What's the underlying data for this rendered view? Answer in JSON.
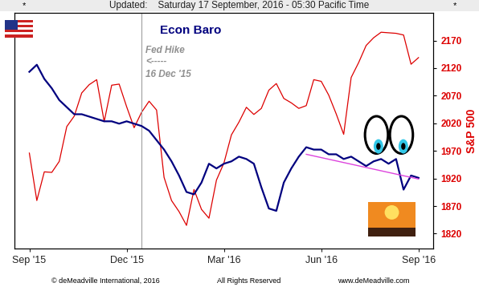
{
  "chart_data": {
    "type": "line",
    "header": "Updated:    Saturday 17 September, 2016 - 05:30 Pacific Time",
    "header_mark": "*",
    "title": "Econ Baro",
    "y2_label": "S&P 500",
    "footer": [
      "© deMeadville International, 2016",
      "All Rights Reserved",
      "www.deMeadville.com"
    ],
    "categories": [
      "Sep '15",
      null,
      null,
      null,
      null,
      null,
      null,
      null,
      null,
      null,
      null,
      null,
      null,
      "Dec '15",
      null,
      null,
      null,
      null,
      null,
      null,
      null,
      null,
      null,
      null,
      null,
      null,
      "Mar '16",
      null,
      null,
      null,
      null,
      null,
      null,
      null,
      null,
      null,
      null,
      null,
      null,
      "Jun '16",
      null,
      null,
      null,
      null,
      null,
      null,
      null,
      null,
      null,
      null,
      null,
      null,
      "Sep '16"
    ],
    "series": [
      {
        "color": "#dd0000",
        "axis": "y2",
        "type": "line",
        "values": [
          1966,
          1880,
          1932,
          1931,
          1951,
          2014,
          2033,
          2075,
          2090,
          2099,
          2023,
          2089,
          2091,
          2050,
          2012,
          2040,
          2060,
          2044,
          1922,
          1880,
          1860,
          1835,
          1900,
          1864,
          1848,
          1917,
          1948,
          1999,
          2022,
          2049,
          2036,
          2047,
          2080,
          2092,
          2065,
          2057,
          2047,
          2052,
          2099,
          2096,
          2071,
          2037,
          2000,
          2103,
          2130,
          2161,
          2175,
          2185,
          2184,
          2183,
          2180,
          2127,
          2139
        ]
      },
      {
        "color": "#00007f",
        "type": "line",
        "values": [
          75,
          78,
          72,
          68,
          63,
          60,
          57,
          57,
          56,
          55,
          54,
          54,
          53,
          54,
          53,
          52,
          50,
          46,
          42,
          37,
          31,
          24,
          23,
          28,
          36,
          34,
          36,
          37,
          39,
          38,
          36,
          26,
          17,
          16,
          28,
          34,
          39,
          43,
          42,
          42,
          40,
          40,
          38,
          39,
          37,
          35,
          37,
          38,
          36,
          38,
          25,
          31,
          30
        ]
      },
      {
        "color": "#dd44dd",
        "type": "trendline",
        "values": [
          null,
          null,
          null,
          null,
          null,
          null,
          null,
          null,
          null,
          null,
          null,
          null,
          null,
          null,
          null,
          null,
          null,
          null,
          null,
          null,
          null,
          null,
          null,
          null,
          null,
          null,
          null,
          null,
          null,
          null,
          null,
          null,
          null,
          null,
          null,
          null,
          null,
          40,
          null,
          null,
          null,
          null,
          null,
          null,
          null,
          null,
          null,
          null,
          null,
          null,
          null,
          null,
          29.5
        ]
      }
    ],
    "ylim": [
      0,
      100
    ],
    "yticks": [],
    "y2lim": [
      1793,
      2220
    ],
    "y2ticks": [
      1820,
      1870,
      1920,
      1970,
      2020,
      2070,
      2120,
      2170
    ],
    "annotations": [
      {
        "text": [
          "Fed Hike",
          "<-----",
          "16 Dec '15"
        ],
        "x": 15
      }
    ]
  }
}
